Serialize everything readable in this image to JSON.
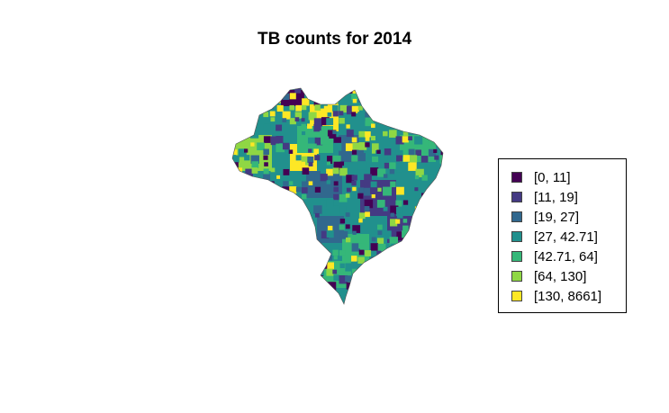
{
  "title": "TB counts for 2014",
  "legend": {
    "items": [
      {
        "label": "[0, 11]",
        "color": "#440154"
      },
      {
        "label": "[11, 19]",
        "color": "#443a83"
      },
      {
        "label": "[19, 27]",
        "color": "#31688e"
      },
      {
        "label": "[27, 42.71]",
        "color": "#21908d"
      },
      {
        "label": "[42.71, 64]",
        "color": "#35b779"
      },
      {
        "label": "[64, 130]",
        "color": "#8fd744"
      },
      {
        "label": "[130, 8661]",
        "color": "#fde725"
      }
    ]
  },
  "map": {
    "region": "Brazil",
    "classification": "choropleth"
  }
}
